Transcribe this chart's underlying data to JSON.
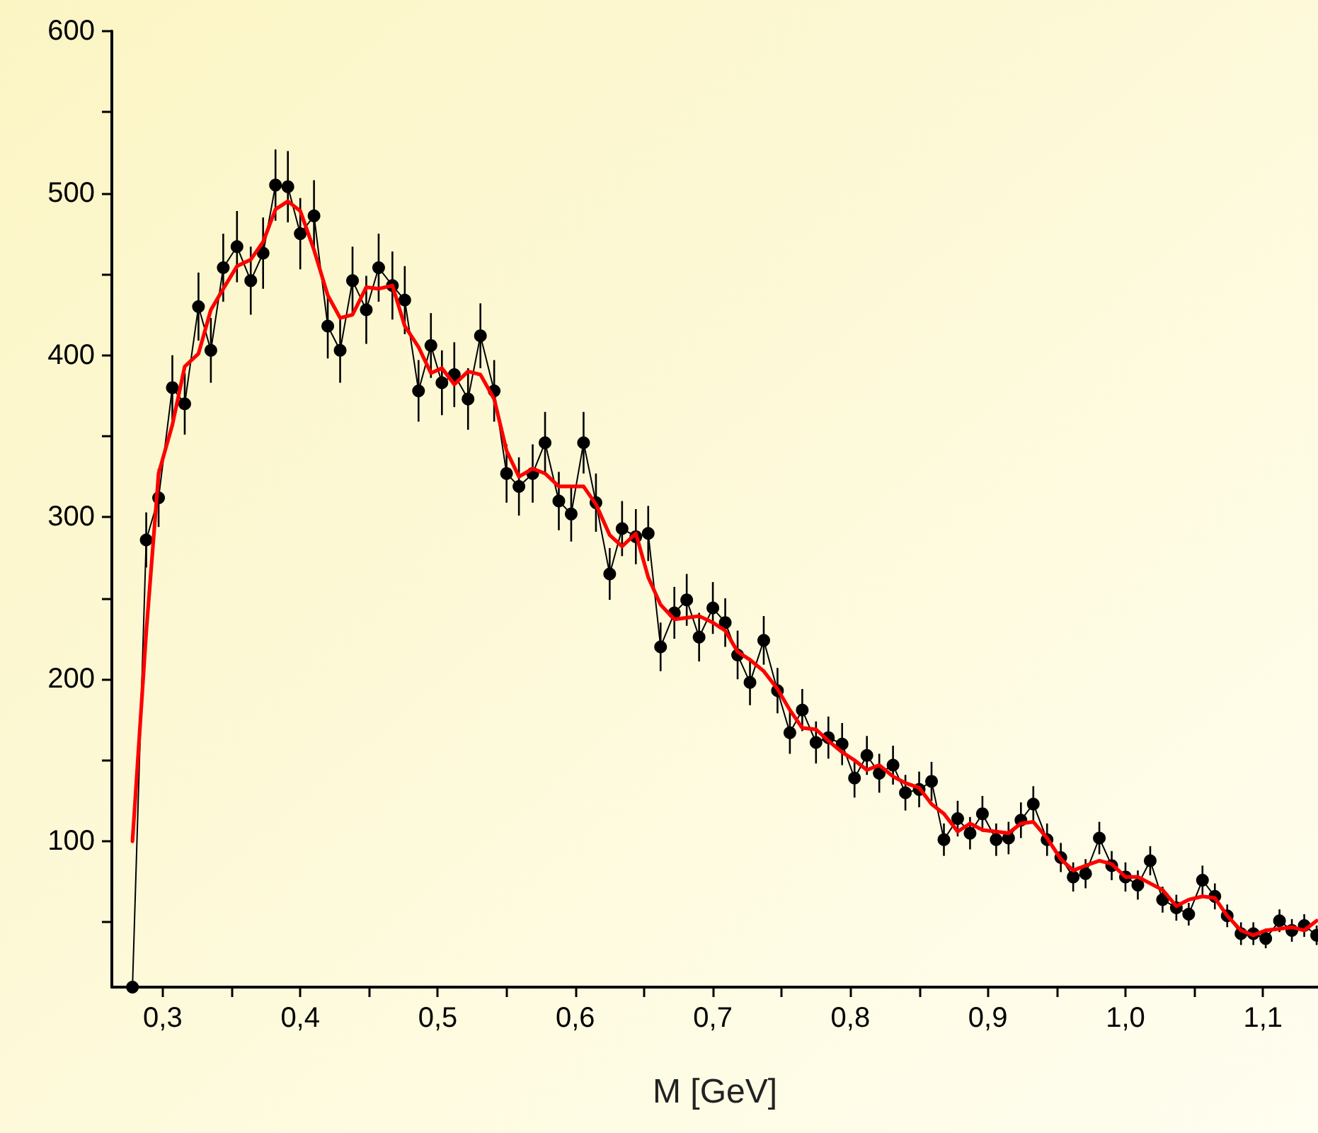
{
  "chart_data": {
    "type": "line",
    "xlabel": "M [GeV]",
    "xlim": [
      0.263,
      1.14
    ],
    "ylim": [
      10,
      600
    ],
    "xticks": [
      {
        "value": 0.3,
        "label": "0,3"
      },
      {
        "value": 0.35,
        "label": null
      },
      {
        "value": 0.4,
        "label": "0,4"
      },
      {
        "value": 0.45,
        "label": null
      },
      {
        "value": 0.5,
        "label": "0,5"
      },
      {
        "value": 0.55,
        "label": null
      },
      {
        "value": 0.6,
        "label": "0,6"
      },
      {
        "value": 0.65,
        "label": null
      },
      {
        "value": 0.7,
        "label": "0,7"
      },
      {
        "value": 0.75,
        "label": null
      },
      {
        "value": 0.8,
        "label": "0,8"
      },
      {
        "value": 0.85,
        "label": null
      },
      {
        "value": 0.9,
        "label": "0,9"
      },
      {
        "value": 0.95,
        "label": null
      },
      {
        "value": 1.0,
        "label": "1,0"
      },
      {
        "value": 1.05,
        "label": null
      },
      {
        "value": 1.1,
        "label": "1,1"
      }
    ],
    "yticks": [
      {
        "value": 50,
        "label": null
      },
      100,
      {
        "value": 150,
        "label": null
      },
      200,
      {
        "value": 250,
        "label": null
      },
      300,
      {
        "value": 350,
        "label": null
      },
      400,
      {
        "value": 450,
        "label": null
      },
      500,
      {
        "value": 550,
        "label": null
      },
      600
    ],
    "grid": false,
    "x": [
      0.278,
      0.288,
      0.297,
      0.307,
      0.316,
      0.326,
      0.335,
      0.344,
      0.354,
      0.364,
      0.373,
      0.382,
      0.391,
      0.4,
      0.41,
      0.42,
      0.429,
      0.438,
      0.448,
      0.457,
      0.467,
      0.476,
      0.486,
      0.495,
      0.503,
      0.512,
      0.522,
      0.531,
      0.541,
      0.55,
      0.559,
      0.569,
      0.578,
      0.588,
      0.597,
      0.606,
      0.615,
      0.625,
      0.634,
      0.644,
      0.653,
      0.662,
      0.672,
      0.681,
      0.69,
      0.7,
      0.709,
      0.718,
      0.727,
      0.737,
      0.747,
      0.756,
      0.765,
      0.775,
      0.784,
      0.794,
      0.803,
      0.812,
      0.821,
      0.831,
      0.84,
      0.85,
      0.859,
      0.868,
      0.878,
      0.887,
      0.896,
      0.906,
      0.915,
      0.924,
      0.933,
      0.943,
      0.953,
      0.962,
      0.971,
      0.981,
      0.99,
      1.0,
      1.009,
      1.018,
      1.027,
      1.037,
      1.046,
      1.056,
      1.065,
      1.074,
      1.084,
      1.093,
      1.102,
      1.112,
      1.121,
      1.13,
      1.139
    ],
    "series": [
      {
        "color": "#000000",
        "marker": "circle",
        "values": [
          10,
          286,
          312,
          380,
          370,
          430,
          403,
          454,
          467,
          446,
          463,
          505,
          504,
          475,
          486,
          418,
          403,
          446,
          428,
          454,
          443,
          434,
          378,
          406,
          383,
          388,
          373,
          412,
          378,
          327,
          319,
          327,
          346,
          310,
          302,
          346,
          309,
          265,
          293,
          288,
          290,
          220,
          241,
          249,
          226,
          244,
          235,
          215,
          198,
          224,
          193,
          167,
          181,
          161,
          164,
          160,
          139,
          153,
          142,
          147,
          130,
          132,
          137,
          101,
          114,
          105,
          117,
          101,
          102,
          113,
          123,
          101,
          90,
          78,
          80,
          102,
          85,
          78,
          73,
          88,
          64,
          59,
          55,
          76,
          66,
          54,
          43,
          43,
          40,
          51,
          45,
          48,
          42
        ],
        "errors": [
          null,
          17,
          18,
          20,
          19,
          21,
          20,
          21,
          22,
          21,
          22,
          22,
          22,
          22,
          22,
          20,
          20,
          21,
          21,
          21,
          21,
          21,
          19,
          20,
          20,
          20,
          19,
          20,
          19,
          18,
          18,
          18,
          19,
          18,
          17,
          19,
          18,
          16,
          17,
          17,
          17,
          15,
          16,
          16,
          15,
          16,
          15,
          15,
          14,
          15,
          14,
          13,
          13,
          13,
          13,
          13,
          12,
          12,
          12,
          12,
          11,
          11,
          12,
          10,
          11,
          10,
          11,
          10,
          10,
          11,
          11,
          10,
          9,
          9,
          9,
          10,
          9,
          9,
          9,
          9,
          8,
          8,
          7,
          9,
          8,
          7,
          7,
          7,
          6,
          7,
          7,
          7,
          6
        ]
      },
      {
        "color": "#ff0000",
        "marker": "none",
        "values": [
          100,
          229,
          327,
          357,
          393,
          401,
          428,
          441,
          455,
          459,
          470,
          490,
          495,
          489,
          465,
          437,
          423,
          425,
          442,
          441,
          443,
          418,
          405,
          389,
          392,
          382,
          390,
          388,
          373,
          341,
          325,
          330,
          327,
          319,
          319,
          319,
          308,
          289,
          282,
          290,
          263,
          246,
          237,
          238,
          239,
          235,
          230,
          217,
          212,
          205,
          194,
          181,
          170,
          169,
          162,
          155,
          150,
          144,
          147,
          140,
          136,
          133,
          123,
          117,
          106,
          111,
          107,
          106,
          105,
          111,
          112,
          102,
          89,
          82,
          85,
          88,
          86,
          78,
          78,
          74,
          70,
          60,
          64,
          66,
          65,
          54,
          45,
          42,
          45,
          46,
          47,
          45,
          51
        ]
      }
    ]
  }
}
